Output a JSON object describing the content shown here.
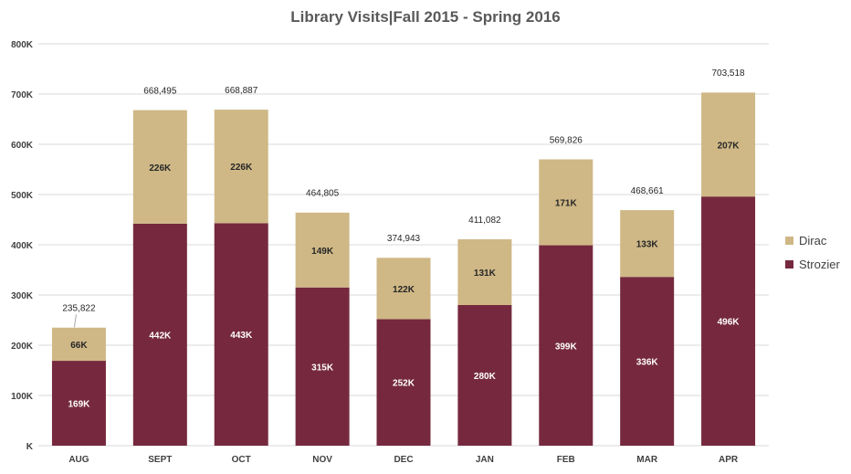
{
  "chart_data": {
    "type": "bar",
    "stacked": true,
    "title": "Library Visits|Fall 2015 - Spring 2016",
    "categories": [
      "AUG",
      "SEPT",
      "OCT",
      "NOV",
      "DEC",
      "JAN",
      "FEB",
      "MAR",
      "APR"
    ],
    "series": [
      {
        "name": "Strozier",
        "color": "#76293E",
        "values": [
          169000,
          442000,
          443000,
          315000,
          252000,
          280000,
          399000,
          336000,
          496000
        ],
        "labels": [
          "169K",
          "442K",
          "443K",
          "315K",
          "252K",
          "280K",
          "399K",
          "336K",
          "496K"
        ]
      },
      {
        "name": "Dirac",
        "color": "#CFB886",
        "values": [
          66000,
          226000,
          226000,
          149000,
          122000,
          131000,
          171000,
          133000,
          207000
        ],
        "labels": [
          "66K",
          "226K",
          "226K",
          "149K",
          "122K",
          "131K",
          "171K",
          "133K",
          "207K"
        ]
      }
    ],
    "totals": [
      235822,
      668495,
      668887,
      464805,
      374943,
      411082,
      569826,
      468661,
      703518
    ],
    "total_labels": [
      "235,822",
      "668,495",
      "668,887",
      "464,805",
      "374,943",
      "411,082",
      "569,826",
      "468,661",
      "703,518"
    ],
    "ylim": [
      0,
      800000
    ],
    "yticks": [
      0,
      100000,
      200000,
      300000,
      400000,
      500000,
      600000,
      700000,
      800000
    ],
    "ytick_labels": [
      "K",
      "100K",
      "200K",
      "300K",
      "400K",
      "500K",
      "600K",
      "700K",
      "800K"
    ],
    "grid": true,
    "legend_position": "right"
  }
}
